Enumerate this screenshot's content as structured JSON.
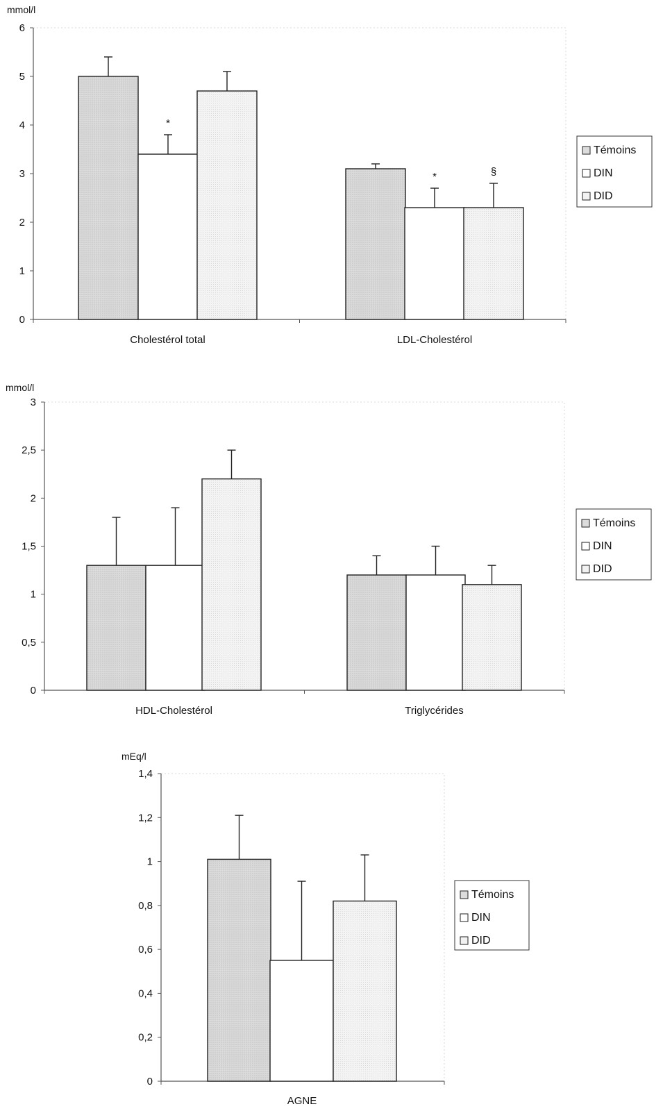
{
  "colors": {
    "temoins": "#dcdcdc",
    "din": "#ffffff",
    "did": "#f2f2f2"
  },
  "legend": {
    "placement": "right",
    "entries": [
      "Témoins",
      "DIN",
      "DID"
    ]
  },
  "chart_data": [
    {
      "type": "bar",
      "ylabel": "mmol/l",
      "ylim": [
        0,
        6
      ],
      "yticks": [
        "0",
        "1",
        "2",
        "3",
        "4",
        "5",
        "6"
      ],
      "categories": [
        "Cholestérol total",
        "LDL-Cholestérol"
      ],
      "series": [
        {
          "name": "Témoins",
          "values": [
            5.0,
            3.1
          ],
          "errors": [
            0.4,
            0.1
          ],
          "marks": [
            "",
            ""
          ]
        },
        {
          "name": "DIN",
          "values": [
            3.4,
            2.3
          ],
          "errors": [
            0.4,
            0.4
          ],
          "marks": [
            "*",
            "*"
          ]
        },
        {
          "name": "DID",
          "values": [
            4.7,
            2.3
          ],
          "errors": [
            0.4,
            0.5
          ],
          "marks": [
            "",
            "§"
          ]
        }
      ]
    },
    {
      "type": "bar",
      "ylabel": "mmol/l",
      "ylim": [
        0,
        3
      ],
      "yticks": [
        "0",
        "0,5",
        "1",
        "1,5",
        "2",
        "2,5",
        "3"
      ],
      "categories": [
        "HDL-Cholestérol",
        "Triglycérides"
      ],
      "series": [
        {
          "name": "Témoins",
          "values": [
            1.3,
            1.2
          ],
          "errors": [
            0.5,
            0.2
          ],
          "marks": [
            "",
            ""
          ]
        },
        {
          "name": "DIN",
          "values": [
            1.3,
            1.2
          ],
          "errors": [
            0.6,
            0.3
          ],
          "marks": [
            "",
            ""
          ]
        },
        {
          "name": "DID",
          "values": [
            2.2,
            1.1
          ],
          "errors": [
            0.3,
            0.2
          ],
          "marks": [
            "",
            ""
          ]
        }
      ]
    },
    {
      "type": "bar",
      "ylabel": "mEq/l",
      "ylim": [
        0,
        1.4
      ],
      "yticks": [
        "0",
        "0,2",
        "0,4",
        "0,6",
        "0,8",
        "1",
        "1,2",
        "1,4"
      ],
      "categories": [
        "AGNE"
      ],
      "series": [
        {
          "name": "Témoins",
          "values": [
            1.01
          ],
          "errors": [
            0.2
          ],
          "marks": [
            ""
          ]
        },
        {
          "name": "DIN",
          "values": [
            0.55
          ],
          "errors": [
            0.36
          ],
          "marks": [
            ""
          ]
        },
        {
          "name": "DID",
          "values": [
            0.82
          ],
          "errors": [
            0.21
          ],
          "marks": [
            ""
          ]
        }
      ]
    }
  ]
}
